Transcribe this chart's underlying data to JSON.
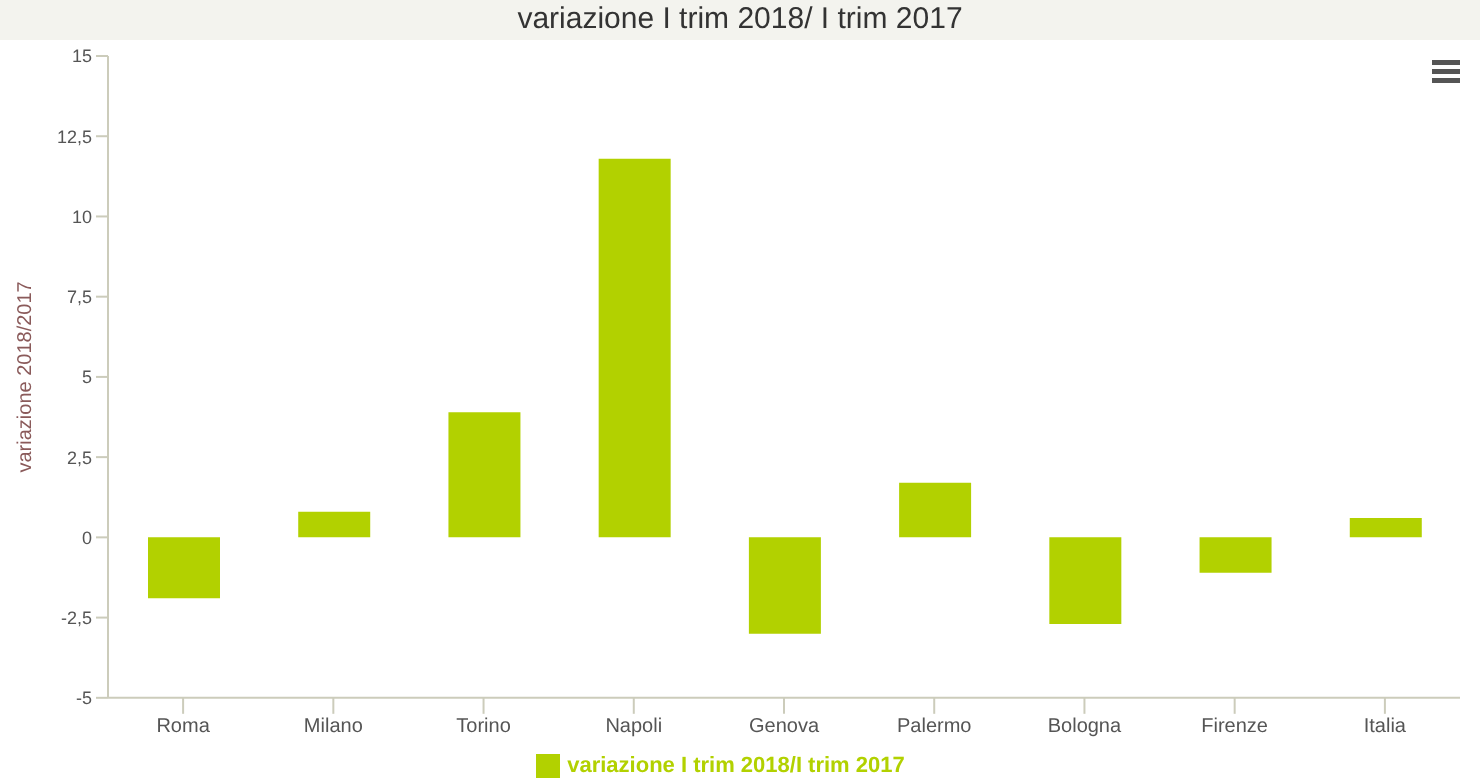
{
  "chart_data": {
    "type": "bar",
    "title": "variazione I trim 2018/ I trim 2017",
    "ylabel": "variazione 2018/2017",
    "categories": [
      "Roma",
      "Milano",
      "Torino",
      "Napoli",
      "Genova",
      "Palermo",
      "Bologna",
      "Firenze",
      "Italia"
    ],
    "series": [
      {
        "name": "variazione I trim 2018/I trim 2017",
        "color": "#b2d100",
        "values": [
          -1.9,
          0.8,
          3.9,
          11.8,
          -3.0,
          1.7,
          -2.7,
          -1.1,
          0.6
        ]
      }
    ],
    "ylim": [
      -5,
      15
    ],
    "yticks": [
      -5,
      {
        "value": -2.5,
        "label": "-2,5"
      },
      0,
      {
        "value": 2.5,
        "label": "2,5"
      },
      5,
      {
        "value": 7.5,
        "label": "7,5"
      },
      10,
      {
        "value": 12.5,
        "label": "12,5"
      },
      15
    ],
    "grid": false,
    "legend": "bottom"
  }
}
